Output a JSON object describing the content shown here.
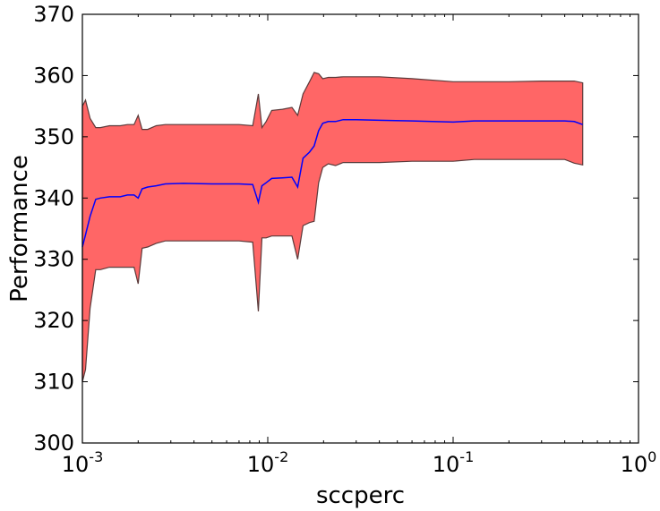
{
  "chart_data": {
    "type": "area",
    "xscale": "log",
    "xlabel": "sccperc",
    "ylabel": "Performance",
    "xlim": [
      0.001,
      1
    ],
    "ylim": [
      300,
      370
    ],
    "grid": false,
    "xticks": [
      {
        "value": 0.001,
        "base": "10",
        "exp": "-3"
      },
      {
        "value": 0.01,
        "base": "10",
        "exp": "-2"
      },
      {
        "value": 0.1,
        "base": "10",
        "exp": "-1"
      },
      {
        "value": 1,
        "base": "10",
        "exp": "0"
      }
    ],
    "yticks": [
      300,
      310,
      320,
      330,
      340,
      350,
      360,
      370
    ],
    "colors": {
      "band": "#ff6666",
      "band_edge": "#5a3a3a",
      "mean": "#0000ff",
      "axis": "#000000"
    },
    "x": [
      0.001,
      0.00104,
      0.0011,
      0.00118,
      0.00125,
      0.0014,
      0.0016,
      0.00175,
      0.0019,
      0.002,
      0.0021,
      0.00225,
      0.0025,
      0.0028,
      0.0035,
      0.005,
      0.007,
      0.0083,
      0.0089,
      0.0093,
      0.0098,
      0.0105,
      0.012,
      0.0135,
      0.0145,
      0.0155,
      0.0168,
      0.0178,
      0.0188,
      0.0198,
      0.0212,
      0.0232,
      0.0255,
      0.03,
      0.04,
      0.06,
      0.1,
      0.13,
      0.2,
      0.3,
      0.35,
      0.4,
      0.45,
      0.5
    ],
    "series": [
      {
        "role": "upper",
        "values": [
          355.0,
          356.0,
          353.0,
          351.5,
          351.5,
          351.8,
          351.8,
          352.0,
          352.0,
          353.5,
          351.2,
          351.2,
          351.8,
          352.0,
          352.0,
          352.0,
          352.0,
          351.8,
          357.0,
          351.5,
          352.5,
          354.3,
          354.5,
          354.8,
          353.5,
          357.0,
          359.0,
          360.5,
          360.3,
          359.5,
          359.7,
          359.7,
          359.8,
          359.8,
          359.8,
          359.5,
          359.0,
          359.0,
          359.0,
          359.1,
          359.1,
          359.1,
          359.1,
          358.8
        ]
      },
      {
        "role": "mean",
        "values": [
          332.0,
          334.0,
          337.0,
          339.8,
          340.0,
          340.2,
          340.2,
          340.5,
          340.5,
          340.0,
          341.5,
          341.8,
          342.0,
          342.3,
          342.4,
          342.3,
          342.3,
          342.2,
          339.3,
          342.0,
          342.5,
          343.2,
          343.3,
          343.4,
          341.8,
          346.5,
          347.5,
          348.5,
          351.0,
          352.2,
          352.5,
          352.5,
          352.8,
          352.8,
          352.7,
          352.6,
          352.4,
          352.6,
          352.6,
          352.6,
          352.6,
          352.6,
          352.5,
          352.0
        ]
      },
      {
        "role": "lower",
        "values": [
          310.0,
          312.0,
          322.0,
          328.3,
          328.3,
          328.7,
          328.7,
          328.7,
          328.7,
          326.0,
          331.8,
          332.0,
          332.6,
          333.0,
          333.0,
          333.0,
          333.0,
          332.8,
          321.5,
          333.5,
          333.5,
          333.8,
          333.8,
          333.8,
          330.0,
          335.5,
          336.0,
          336.2,
          342.5,
          345.0,
          345.6,
          345.3,
          345.8,
          345.8,
          345.8,
          346.0,
          346.0,
          346.3,
          346.3,
          346.3,
          346.3,
          346.3,
          345.7,
          345.4
        ]
      }
    ]
  }
}
